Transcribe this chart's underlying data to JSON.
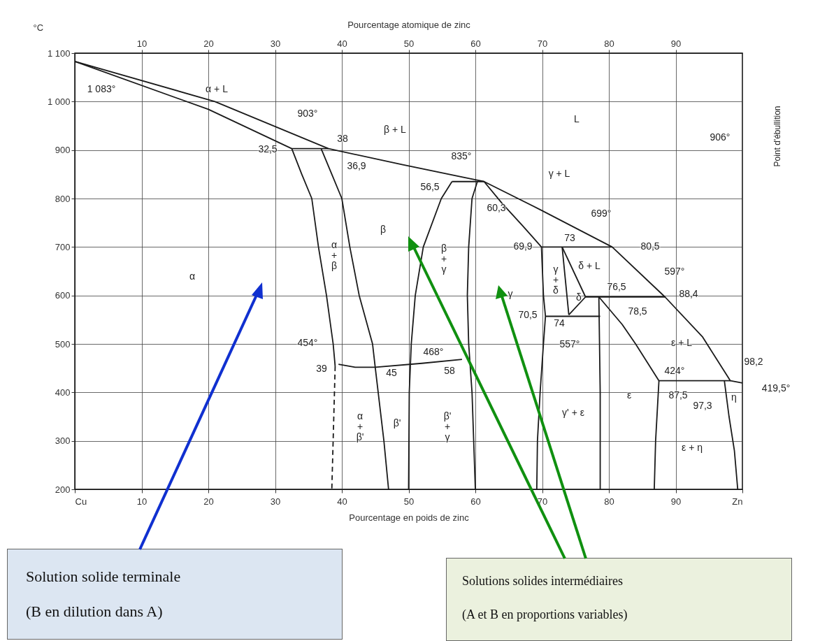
{
  "chart_data": {
    "type": "line",
    "xlabel": "Pourcentage en poids de zinc",
    "x2label": "Pourcentage atomique de zinc",
    "ylabel": "°C",
    "xlim": [
      0,
      100
    ],
    "ylim": [
      200,
      1100
    ],
    "xticks": [
      {
        "value": 0,
        "label": "Cu"
      },
      10,
      20,
      30,
      40,
      50,
      60,
      70,
      80,
      90,
      {
        "value": 100,
        "label": "Zn"
      }
    ],
    "x2lim": [
      0,
      100
    ],
    "x2ticks": [
      10,
      20,
      30,
      40,
      50,
      60,
      70,
      80,
      90
    ],
    "yticks": [
      200,
      300,
      400,
      500,
      600,
      700,
      800,
      900,
      {
        "value": 1000,
        "label": "1 000"
      },
      {
        "value": 1100,
        "label": "1 100"
      }
    ],
    "grid": true,
    "series": [
      {
        "color": "#1a1a1a",
        "x": [
          0,
          21,
          38,
          49,
          61.3,
          70,
          80.5,
          88.4,
          94,
          98.2,
          100
        ],
        "values": [
          1083,
          1000,
          903,
          870,
          835,
          775,
          700,
          597,
          515,
          424,
          419.5
        ]
      },
      {
        "color": "#1a1a1a",
        "x": [
          0,
          20,
          32.5,
          38
        ],
        "values": [
          1083,
          984,
          903,
          903
        ]
      },
      {
        "color": "#1a1a1a",
        "x": [
          32.5,
          34,
          35.5,
          36.5,
          37.7,
          38.7,
          39
        ],
        "values": [
          903,
          850,
          800,
          700,
          600,
          500,
          454
        ]
      },
      {
        "color": "#1a1a1a",
        "line_style": "dashed",
        "x": [
          39,
          38.5
        ],
        "values": [
          454,
          200
        ]
      },
      {
        "color": "#1a1a1a",
        "x": [
          36.9,
          38.5,
          40,
          41.2,
          42.6,
          44.6,
          45,
          46.3,
          47
        ],
        "values": [
          903,
          850,
          800,
          700,
          600,
          500,
          452,
          300,
          200
        ]
      },
      {
        "color": "#1a1a1a",
        "x": [
          39.5,
          42,
          45,
          52,
          58
        ],
        "values": [
          458,
          452,
          452,
          460,
          468
        ]
      },
      {
        "color": "#1a1a1a",
        "x": [
          56.5,
          54.9,
          52.2,
          51,
          50.4,
          50.1,
          50
        ],
        "values": [
          835,
          800,
          700,
          600,
          500,
          400,
          200
        ]
      },
      {
        "color": "#1a1a1a",
        "x": [
          56.5,
          61.3
        ],
        "values": [
          835,
          835
        ]
      },
      {
        "color": "#1a1a1a",
        "x": [
          60.3,
          59.5,
          59,
          58.8,
          59,
          59.5,
          60
        ],
        "values": [
          835,
          800,
          700,
          600,
          500,
          400,
          200
        ]
      },
      {
        "color": "#1a1a1a",
        "x": [
          61.3,
          64,
          67,
          69.9,
          70.2,
          70.5,
          70.2,
          69.7,
          69.3,
          69.2
        ],
        "values": [
          835,
          790,
          745,
          700,
          600,
          557,
          500,
          400,
          300,
          200
        ]
      },
      {
        "color": "#1a1a1a",
        "x": [
          69.9,
          80.5
        ],
        "values": [
          700,
          700
        ]
      },
      {
        "color": "#1a1a1a",
        "x": [
          73,
          73.5,
          74
        ],
        "values": [
          700,
          630,
          560
        ]
      },
      {
        "color": "#1a1a1a",
        "x": [
          73,
          76.5
        ],
        "values": [
          700,
          597
        ]
      },
      {
        "color": "#1a1a1a",
        "x": [
          74,
          76.5
        ],
        "values": [
          560,
          597
        ]
      },
      {
        "color": "#1a1a1a",
        "x": [
          76.5,
          88.4
        ],
        "values": [
          597,
          597
        ]
      },
      {
        "color": "#1a1a1a",
        "x": [
          70.5,
          78.7
        ],
        "values": [
          557,
          557
        ]
      },
      {
        "color": "#1a1a1a",
        "x": [
          78.5,
          78.7,
          78.7
        ],
        "values": [
          597,
          400,
          200
        ]
      },
      {
        "color": "#1a1a1a",
        "x": [
          78.5,
          82,
          84,
          87.5
        ],
        "values": [
          597,
          540,
          500,
          424
        ]
      },
      {
        "color": "#1a1a1a",
        "x": [
          87.5,
          98.2
        ],
        "values": [
          424,
          424
        ]
      },
      {
        "color": "#1a1a1a",
        "x": [
          87.5,
          87,
          86.8
        ],
        "values": [
          424,
          300,
          200
        ]
      },
      {
        "color": "#1a1a1a",
        "x": [
          97.3,
          98,
          98.8,
          99.3
        ],
        "values": [
          424,
          350,
          280,
          200
        ]
      }
    ],
    "annotations": [
      "α + L",
      "1 083°",
      "903°",
      "38",
      "32,5",
      "36,9",
      "β + L",
      "835°",
      "L",
      "906°",
      "Point d'ébullition",
      "56,5",
      "60,3",
      "γ + L",
      "699°",
      "73",
      "80,5",
      "69,9",
      "α",
      "β",
      "α\n+\nβ",
      "β\n+\nγ",
      "γ",
      "δ + L",
      "γ\n+\nδ",
      "δ",
      "597°",
      "76,5",
      "88,4",
      "78,5",
      "70,5",
      "74",
      "557°",
      "454°",
      "468°",
      "39",
      "45",
      "58",
      "ε + L",
      "424°",
      "98,2",
      "419,5°",
      "ε",
      "87,5",
      "97,3",
      "η",
      "γ' + ε",
      "α\n+\nβ'",
      "β'",
      "β'\n+\nγ",
      "ε + η",
      "Solution  solide  terminale",
      "(B en dilution  dans A)",
      "Solutions  solides  intermédiaires",
      "(A et B en proportions  variables)"
    ]
  }
}
